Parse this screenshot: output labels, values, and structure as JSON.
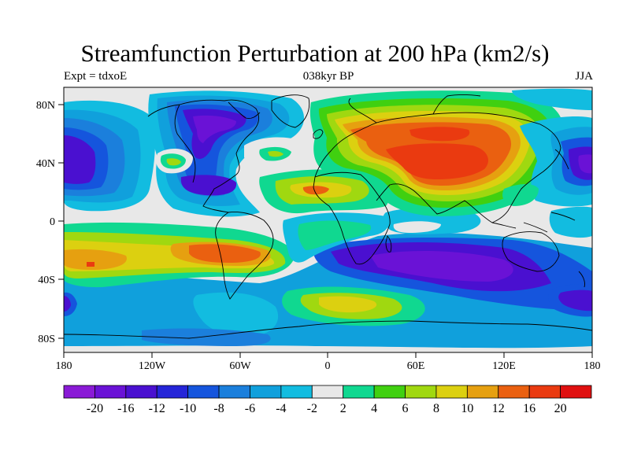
{
  "title": "Streamfunction Perturbation at 200 hPa (km2/s)",
  "left_string": "Expt = tdxoE",
  "center_string": "038kyr BP",
  "right_string": "JJA",
  "lat_ticks": [
    "80N",
    "40N",
    "0",
    "40S",
    "80S"
  ],
  "lon_ticks": [
    "180",
    "120W",
    "60W",
    "0",
    "60E",
    "120E",
    "180"
  ],
  "colorbar": {
    "labels": [
      "-20",
      "-16",
      "-12",
      "-10",
      "-8",
      "-6",
      "-4",
      "-2",
      "2",
      "4",
      "6",
      "8",
      "10",
      "12",
      "16",
      "20"
    ],
    "colors": [
      "#8a1ad6",
      "#6a12d6",
      "#4a10d0",
      "#2525d8",
      "#1555dd",
      "#1b7fdc",
      "#10a0dc",
      "#12bce0",
      "#e8e8e8",
      "#10d890",
      "#40d010",
      "#a0d810",
      "#dcd010",
      "#e6a010",
      "#ea6010",
      "#ea3a10",
      "#e01010"
    ]
  },
  "regions": [
    {
      "name": "north-pacific-low",
      "color": "#4a10d0"
    },
    {
      "name": "north-america-low",
      "color": "#6a12d6"
    },
    {
      "name": "eurasia-high",
      "color": "#ea3a10"
    },
    {
      "name": "southern-ocean-low",
      "color": "#4a10d0"
    },
    {
      "name": "south-atlantic-high",
      "color": "#ea6010"
    }
  ]
}
